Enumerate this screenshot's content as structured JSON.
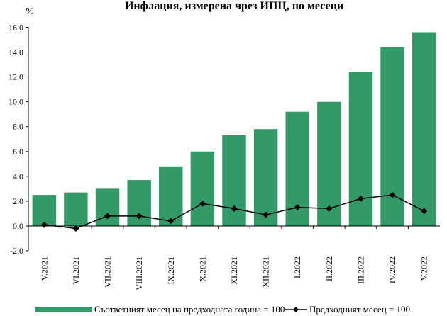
{
  "chart_data": {
    "type": "bar",
    "title": "Инфлация, измерена чрез ИПЦ, по месеци",
    "unit_label": "%",
    "categories": [
      "V.2021",
      "VI.2021",
      "VII.2021",
      "VIII.2021",
      "IX.2021",
      "X.2021",
      "XI.2021",
      "XII.2021",
      "I.2022",
      "II.2022",
      "III.2022",
      "IV.2022",
      "V.2022"
    ],
    "series": [
      {
        "name": "Съответният месец на предходната година = 100",
        "type": "bar",
        "color": "#339966",
        "values": [
          2.5,
          2.7,
          3.0,
          3.7,
          4.8,
          6.0,
          7.3,
          7.8,
          9.2,
          10.0,
          12.4,
          14.4,
          15.6
        ]
      },
      {
        "name": "Предходният месец = 100",
        "type": "line",
        "color": "#000000",
        "marker": "diamond",
        "values": [
          0.1,
          -0.2,
          0.8,
          0.8,
          0.4,
          1.8,
          1.4,
          0.9,
          1.5,
          1.4,
          2.2,
          2.5,
          1.2
        ]
      }
    ],
    "ylim": [
      -2.0,
      16.0
    ],
    "yticks": [
      "-2.0",
      "0.0",
      "2.0",
      "4.0",
      "6.0",
      "8.0",
      "10.0",
      "12.0",
      "14.0",
      "16.0"
    ],
    "grid": false,
    "legend_position": "bottom"
  }
}
